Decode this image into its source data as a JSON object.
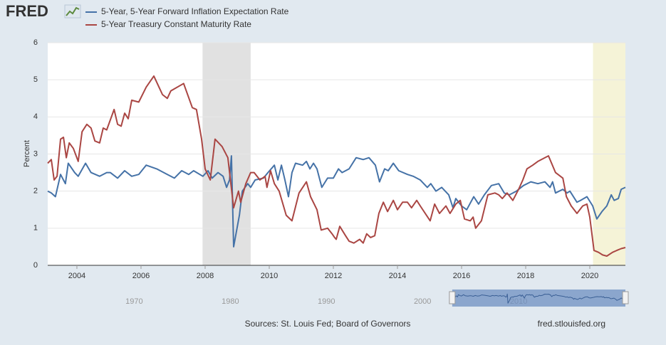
{
  "chart_data": {
    "type": "line",
    "brand": "FRED",
    "ylabel": "Percent",
    "source": "Sources: St. Louis Fed; Board of Governors",
    "site": "fred.stlouisfed.org",
    "xlim": [
      2003.09,
      2021.11
    ],
    "xticks": [
      2004,
      2006,
      2008,
      2010,
      2012,
      2014,
      2016,
      2018,
      2020
    ],
    "ylim": [
      0,
      6
    ],
    "yticks": [
      0,
      1,
      2,
      3,
      4,
      5,
      6
    ],
    "grid": true,
    "legend": "top-left",
    "shaded_periods": [
      [
        2007.92,
        2009.42
      ],
      [
        2020.1,
        2021.11
      ]
    ],
    "shaded_colors": [
      "#e1e1e1",
      "#f5f3d7"
    ],
    "navigator": {
      "xlim": [
        1961,
        2021.11
      ],
      "xticks": [
        1970,
        1980,
        1990,
        2000,
        2010
      ],
      "range": [
        2003.09,
        2021.11
      ]
    },
    "series": [
      {
        "name": "5-Year, 5-Year Forward Inflation Expectation Rate",
        "color": "#4572a7",
        "x": [
          2003.09,
          2003.2,
          2003.33,
          2003.49,
          2003.64,
          2003.73,
          2003.93,
          2004.04,
          2004.27,
          2004.44,
          2004.71,
          2004.93,
          2005.04,
          2005.27,
          2005.49,
          2005.71,
          2005.93,
          2006.16,
          2006.49,
          2006.82,
          2007.04,
          2007.27,
          2007.49,
          2007.64,
          2007.93,
          2008.09,
          2008.22,
          2008.4,
          2008.56,
          2008.67,
          2008.76,
          2008.82,
          2008.89,
          2009.07,
          2009.16,
          2009.33,
          2009.42,
          2009.56,
          2009.82,
          2009.96,
          2010.16,
          2010.27,
          2010.38,
          2010.49,
          2010.6,
          2010.71,
          2010.82,
          2011.04,
          2011.16,
          2011.27,
          2011.38,
          2011.49,
          2011.64,
          2011.82,
          2012.0,
          2012.16,
          2012.27,
          2012.49,
          2012.71,
          2012.93,
          2013.11,
          2013.31,
          2013.44,
          2013.6,
          2013.71,
          2013.87,
          2014.04,
          2014.31,
          2014.49,
          2014.71,
          2014.93,
          2015.04,
          2015.2,
          2015.38,
          2015.6,
          2015.73,
          2015.82,
          2016.0,
          2016.16,
          2016.38,
          2016.53,
          2016.71,
          2016.93,
          2017.16,
          2017.33,
          2017.49,
          2017.71,
          2017.93,
          2018.16,
          2018.38,
          2018.6,
          2018.76,
          2018.84,
          2018.93,
          2019.16,
          2019.29,
          2019.38,
          2019.6,
          2019.71,
          2019.91,
          2020.09,
          2020.22,
          2020.38,
          2020.53,
          2020.67,
          2020.76,
          2020.89,
          2020.98,
          2021.11
        ],
        "values": [
          2.0,
          1.95,
          1.85,
          2.45,
          2.2,
          2.75,
          2.5,
          2.4,
          2.75,
          2.5,
          2.4,
          2.5,
          2.5,
          2.35,
          2.55,
          2.4,
          2.45,
          2.7,
          2.6,
          2.45,
          2.35,
          2.55,
          2.45,
          2.55,
          2.4,
          2.55,
          2.35,
          2.5,
          2.4,
          2.1,
          2.3,
          2.95,
          0.5,
          1.35,
          2.0,
          2.2,
          2.1,
          2.3,
          2.35,
          2.5,
          2.7,
          2.3,
          2.7,
          2.3,
          1.85,
          2.5,
          2.75,
          2.7,
          2.8,
          2.6,
          2.75,
          2.6,
          2.1,
          2.35,
          2.35,
          2.6,
          2.5,
          2.6,
          2.9,
          2.85,
          2.9,
          2.7,
          2.25,
          2.6,
          2.55,
          2.75,
          2.55,
          2.45,
          2.4,
          2.3,
          2.1,
          2.2,
          2.0,
          2.1,
          1.9,
          1.55,
          1.8,
          1.6,
          1.5,
          1.85,
          1.65,
          1.9,
          2.15,
          2.2,
          1.95,
          1.9,
          2.0,
          2.15,
          2.25,
          2.2,
          2.25,
          2.1,
          2.25,
          1.95,
          2.05,
          1.95,
          2.0,
          1.7,
          1.75,
          1.85,
          1.6,
          1.25,
          1.45,
          1.6,
          1.9,
          1.75,
          1.8,
          2.05,
          2.1
        ]
      },
      {
        "name": "5-Year Treasury Constant Maturity Rate",
        "color": "#aa4643",
        "x": [
          2003.09,
          2003.2,
          2003.29,
          2003.38,
          2003.49,
          2003.58,
          2003.67,
          2003.76,
          2003.89,
          2004.04,
          2004.16,
          2004.31,
          2004.44,
          2004.56,
          2004.71,
          2004.82,
          2004.93,
          2005.16,
          2005.27,
          2005.38,
          2005.49,
          2005.6,
          2005.71,
          2005.93,
          2006.16,
          2006.4,
          2006.67,
          2006.82,
          2006.93,
          2007.33,
          2007.6,
          2007.73,
          2007.89,
          2008.0,
          2008.16,
          2008.31,
          2008.53,
          2008.71,
          2008.89,
          2009.04,
          2009.11,
          2009.27,
          2009.42,
          2009.53,
          2009.71,
          2009.87,
          2009.93,
          2010.04,
          2010.16,
          2010.31,
          2010.53,
          2010.71,
          2010.93,
          2011.16,
          2011.29,
          2011.49,
          2011.62,
          2011.82,
          2011.96,
          2012.04,
          2012.09,
          2012.2,
          2012.38,
          2012.49,
          2012.64,
          2012.82,
          2012.93,
          2013.04,
          2013.16,
          2013.29,
          2013.42,
          2013.56,
          2013.69,
          2013.87,
          2014.0,
          2014.16,
          2014.31,
          2014.44,
          2014.6,
          2014.71,
          2015.02,
          2015.16,
          2015.31,
          2015.51,
          2015.64,
          2015.82,
          2015.96,
          2016.09,
          2016.27,
          2016.36,
          2016.44,
          2016.62,
          2016.82,
          2017.04,
          2017.16,
          2017.27,
          2017.42,
          2017.6,
          2017.78,
          2017.91,
          2018.04,
          2018.22,
          2018.38,
          2018.71,
          2018.93,
          2019.16,
          2019.27,
          2019.42,
          2019.6,
          2019.78,
          2019.91,
          2020.0,
          2020.13,
          2020.27,
          2020.4,
          2020.53,
          2020.71,
          2020.84,
          2020.98,
          2021.11
        ],
        "values": [
          2.75,
          2.85,
          2.3,
          2.4,
          3.4,
          3.45,
          2.9,
          3.3,
          3.15,
          2.8,
          3.6,
          3.8,
          3.7,
          3.35,
          3.3,
          3.7,
          3.65,
          4.2,
          3.8,
          3.75,
          4.1,
          3.95,
          4.45,
          4.4,
          4.8,
          5.1,
          4.6,
          4.5,
          4.7,
          4.9,
          4.25,
          4.2,
          3.4,
          2.6,
          2.3,
          3.4,
          3.2,
          2.9,
          1.55,
          2.0,
          1.7,
          2.2,
          2.5,
          2.5,
          2.3,
          2.4,
          2.1,
          2.55,
          2.2,
          2.0,
          1.35,
          1.2,
          1.95,
          2.25,
          1.85,
          1.5,
          0.95,
          1.0,
          0.85,
          0.75,
          0.7,
          1.05,
          0.8,
          0.65,
          0.6,
          0.7,
          0.6,
          0.85,
          0.75,
          0.8,
          1.4,
          1.7,
          1.45,
          1.75,
          1.5,
          1.7,
          1.7,
          1.55,
          1.75,
          1.6,
          1.2,
          1.65,
          1.4,
          1.6,
          1.4,
          1.65,
          1.75,
          1.25,
          1.2,
          1.3,
          1.0,
          1.2,
          1.9,
          1.95,
          1.9,
          1.8,
          1.95,
          1.75,
          2.05,
          2.3,
          2.6,
          2.7,
          2.8,
          2.95,
          2.5,
          2.35,
          1.85,
          1.6,
          1.4,
          1.6,
          1.65,
          1.3,
          0.4,
          0.35,
          0.28,
          0.25,
          0.35,
          0.4,
          0.45,
          0.48
        ]
      }
    ]
  }
}
